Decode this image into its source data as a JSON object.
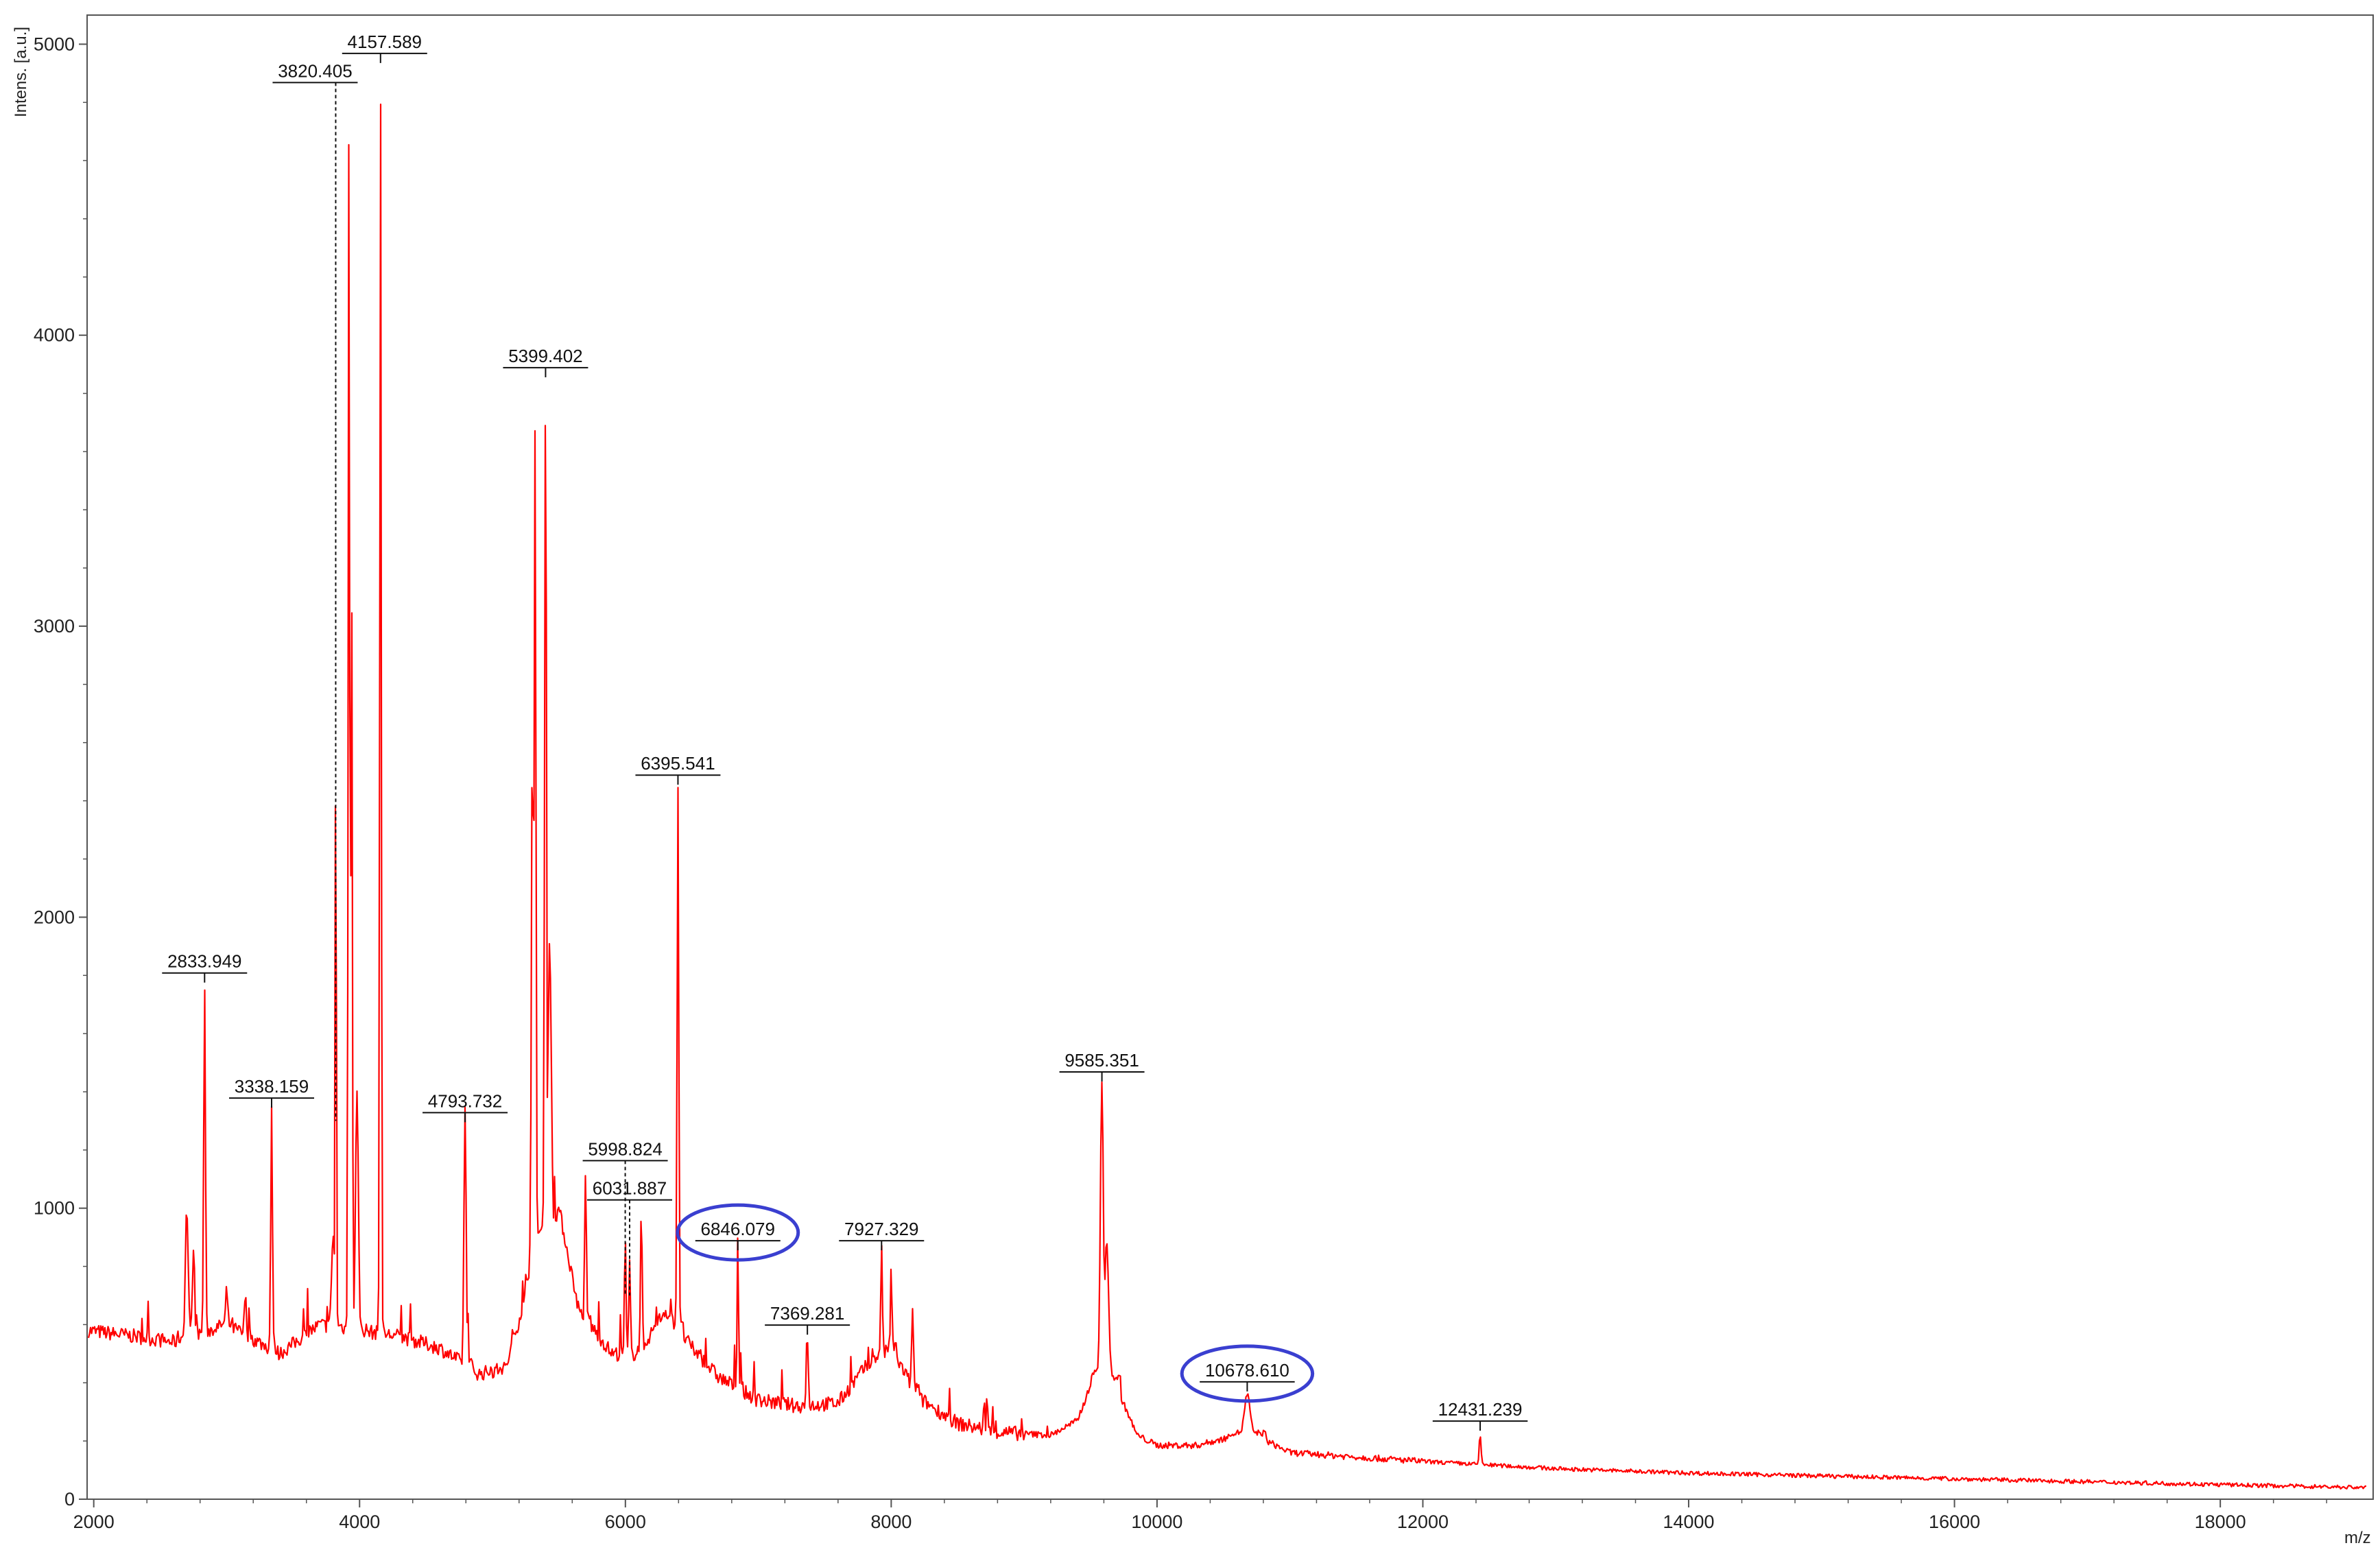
{
  "chart_data": {
    "type": "line",
    "title": "",
    "xlabel": "m/z",
    "ylabel": "Intens. [a.u.]",
    "xlim": [
      1950,
      19150
    ],
    "ylim": [
      0,
      5100
    ],
    "x_ticks": [
      "2000",
      "4000",
      "6000",
      "8000",
      "10000",
      "12000",
      "14000",
      "16000",
      "18000"
    ],
    "y_ticks": [
      "0",
      "1000",
      "2000",
      "3000",
      "4000",
      "5000"
    ],
    "grid": false,
    "legend": "none",
    "colors": {
      "trace": "#ff0000",
      "highlight": "#3a3fd0",
      "axis": "#444444"
    },
    "series": [
      {
        "baseline": [
          [
            1950,
            580
          ],
          [
            2300,
            560
          ],
          [
            2600,
            540
          ],
          [
            3000,
            600
          ],
          [
            3400,
            500
          ],
          [
            3700,
            600
          ],
          [
            4000,
            580
          ],
          [
            4300,
            560
          ],
          [
            4600,
            520
          ],
          [
            4900,
            430
          ],
          [
            5100,
            450
          ],
          [
            5250,
            700
          ],
          [
            5500,
            1000
          ],
          [
            5650,
            650
          ],
          [
            5900,
            500
          ],
          [
            6100,
            500
          ],
          [
            6300,
            650
          ],
          [
            6500,
            520
          ],
          [
            6700,
            420
          ],
          [
            7000,
            340
          ],
          [
            7300,
            320
          ],
          [
            7600,
            330
          ],
          [
            7800,
            450
          ],
          [
            8000,
            520
          ],
          [
            8200,
            350
          ],
          [
            8500,
            260
          ],
          [
            8800,
            230
          ],
          [
            9200,
            220
          ],
          [
            9400,
            270
          ],
          [
            9550,
            450
          ],
          [
            9700,
            380
          ],
          [
            9850,
            220
          ],
          [
            10000,
            185
          ],
          [
            10300,
            185
          ],
          [
            10700,
            230
          ],
          [
            11000,
            160
          ],
          [
            12000,
            130
          ],
          [
            13000,
            105
          ],
          [
            14000,
            90
          ],
          [
            15000,
            80
          ],
          [
            16000,
            70
          ],
          [
            17000,
            60
          ],
          [
            18000,
            50
          ],
          [
            19100,
            40
          ]
        ],
        "peaks": [
          [
            2700,
            1000,
            15
          ],
          [
            2750,
            850,
            12
          ],
          [
            2833.949,
            1780,
            9
          ],
          [
            3000,
            720,
            10
          ],
          [
            3140,
            700,
            10
          ],
          [
            3338.159,
            1350,
            9
          ],
          [
            3800,
            900,
            15
          ],
          [
            3820.405,
            2600,
            7
          ],
          [
            3920,
            4780,
            8
          ],
          [
            3940,
            3200,
            8
          ],
          [
            3980,
            1400,
            15
          ],
          [
            4157.589,
            4900,
            8
          ],
          [
            4793.732,
            1300,
            12
          ],
          [
            5300,
            2680,
            10
          ],
          [
            5320,
            3650,
            10
          ],
          [
            5399.402,
            3850,
            10
          ],
          [
            5430,
            1900,
            18
          ],
          [
            5700,
            1100,
            9
          ],
          [
            5998.824,
            900,
            8
          ],
          [
            6031.887,
            820,
            8
          ],
          [
            6120,
            980,
            9
          ],
          [
            6395.541,
            2450,
            9
          ],
          [
            6846.079,
            850,
            8
          ],
          [
            7369.281,
            540,
            10
          ],
          [
            7927.329,
            860,
            9
          ],
          [
            8000,
            780,
            8
          ],
          [
            8160,
            640,
            10
          ],
          [
            8700,
            320,
            8
          ],
          [
            9585.351,
            1430,
            16
          ],
          [
            9620,
            880,
            22
          ],
          [
            10678.61,
            360,
            28
          ],
          [
            12431.239,
            220,
            10
          ]
        ]
      }
    ],
    "annotations": [
      {
        "label": "2833.949",
        "x": 2833.949,
        "y": 1780,
        "circled": false,
        "connector": "tick"
      },
      {
        "label": "3338.159",
        "x": 3338.159,
        "y": 1350,
        "circled": false,
        "connector": "tick"
      },
      {
        "label": "3820.405",
        "x": 3820.405,
        "y": 4840,
        "circled": false,
        "connector": "dotted"
      },
      {
        "label": "4157.589",
        "x": 4157.589,
        "y": 4940,
        "circled": false,
        "connector": "tick"
      },
      {
        "label": "4793.732",
        "x": 4793.732,
        "y": 1300,
        "circled": false,
        "connector": "tick"
      },
      {
        "label": "5399.402",
        "x": 5399.402,
        "y": 3860,
        "circled": false,
        "connector": "tick"
      },
      {
        "label": "5998.824",
        "x": 5998.824,
        "y": 1135,
        "circled": false,
        "connector": "dotted"
      },
      {
        "label": "6031.887",
        "x": 6031.887,
        "y": 1000,
        "circled": false,
        "connector": "dotted"
      },
      {
        "label": "6395.541",
        "x": 6395.541,
        "y": 2460,
        "circled": false,
        "connector": "tick"
      },
      {
        "label": "6846.079",
        "x": 6846.079,
        "y": 860,
        "circled": true,
        "connector": "tick"
      },
      {
        "label": "7369.281",
        "x": 7369.281,
        "y": 570,
        "circled": false,
        "connector": "tick"
      },
      {
        "label": "7927.329",
        "x": 7927.329,
        "y": 860,
        "circled": false,
        "connector": "tick"
      },
      {
        "label": "9585.351",
        "x": 9585.351,
        "y": 1440,
        "circled": false,
        "connector": "tick"
      },
      {
        "label": "10678.610",
        "x": 10678.61,
        "y": 375,
        "circled": true,
        "connector": "tick"
      },
      {
        "label": "12431.239",
        "x": 12431.239,
        "y": 240,
        "circled": false,
        "connector": "tick"
      }
    ]
  }
}
